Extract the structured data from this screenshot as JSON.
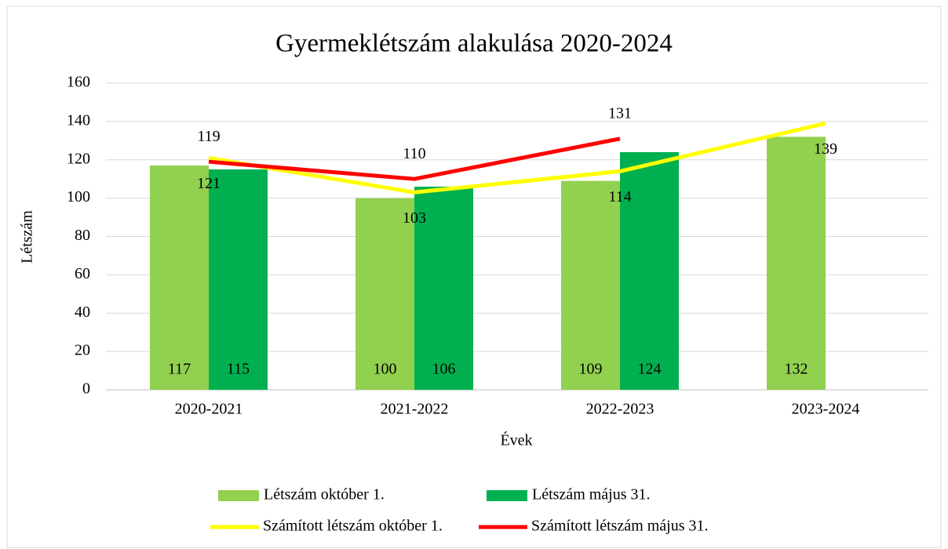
{
  "chart_data": {
    "type": "bar",
    "title": "Gyermeklétszám alakulása 2020-2024",
    "x_label": "Évek",
    "y_label": "Létszám",
    "categories": [
      "2020-2021",
      "2021-2022",
      "2022-2023",
      "2023-2024"
    ],
    "series": [
      {
        "name": "Létszám október 1.",
        "type": "bar",
        "color": "#92d050",
        "values": [
          117,
          100,
          109,
          132
        ]
      },
      {
        "name": "Létszám május 31.",
        "type": "bar",
        "color": "#00b050",
        "values": [
          115,
          106,
          124,
          null
        ]
      },
      {
        "name": "Számított létszám október 1.",
        "type": "line",
        "color": "#ffff00",
        "values": [
          121,
          103,
          114,
          139
        ]
      },
      {
        "name": "Számított létszám május 31.",
        "type": "line",
        "color": "#ff0000",
        "values": [
          119,
          110,
          131,
          null
        ]
      }
    ],
    "ylim": [
      0,
      160
    ],
    "yticks": [
      0,
      20,
      40,
      60,
      80,
      100,
      120,
      140,
      160
    ],
    "grid": true
  }
}
